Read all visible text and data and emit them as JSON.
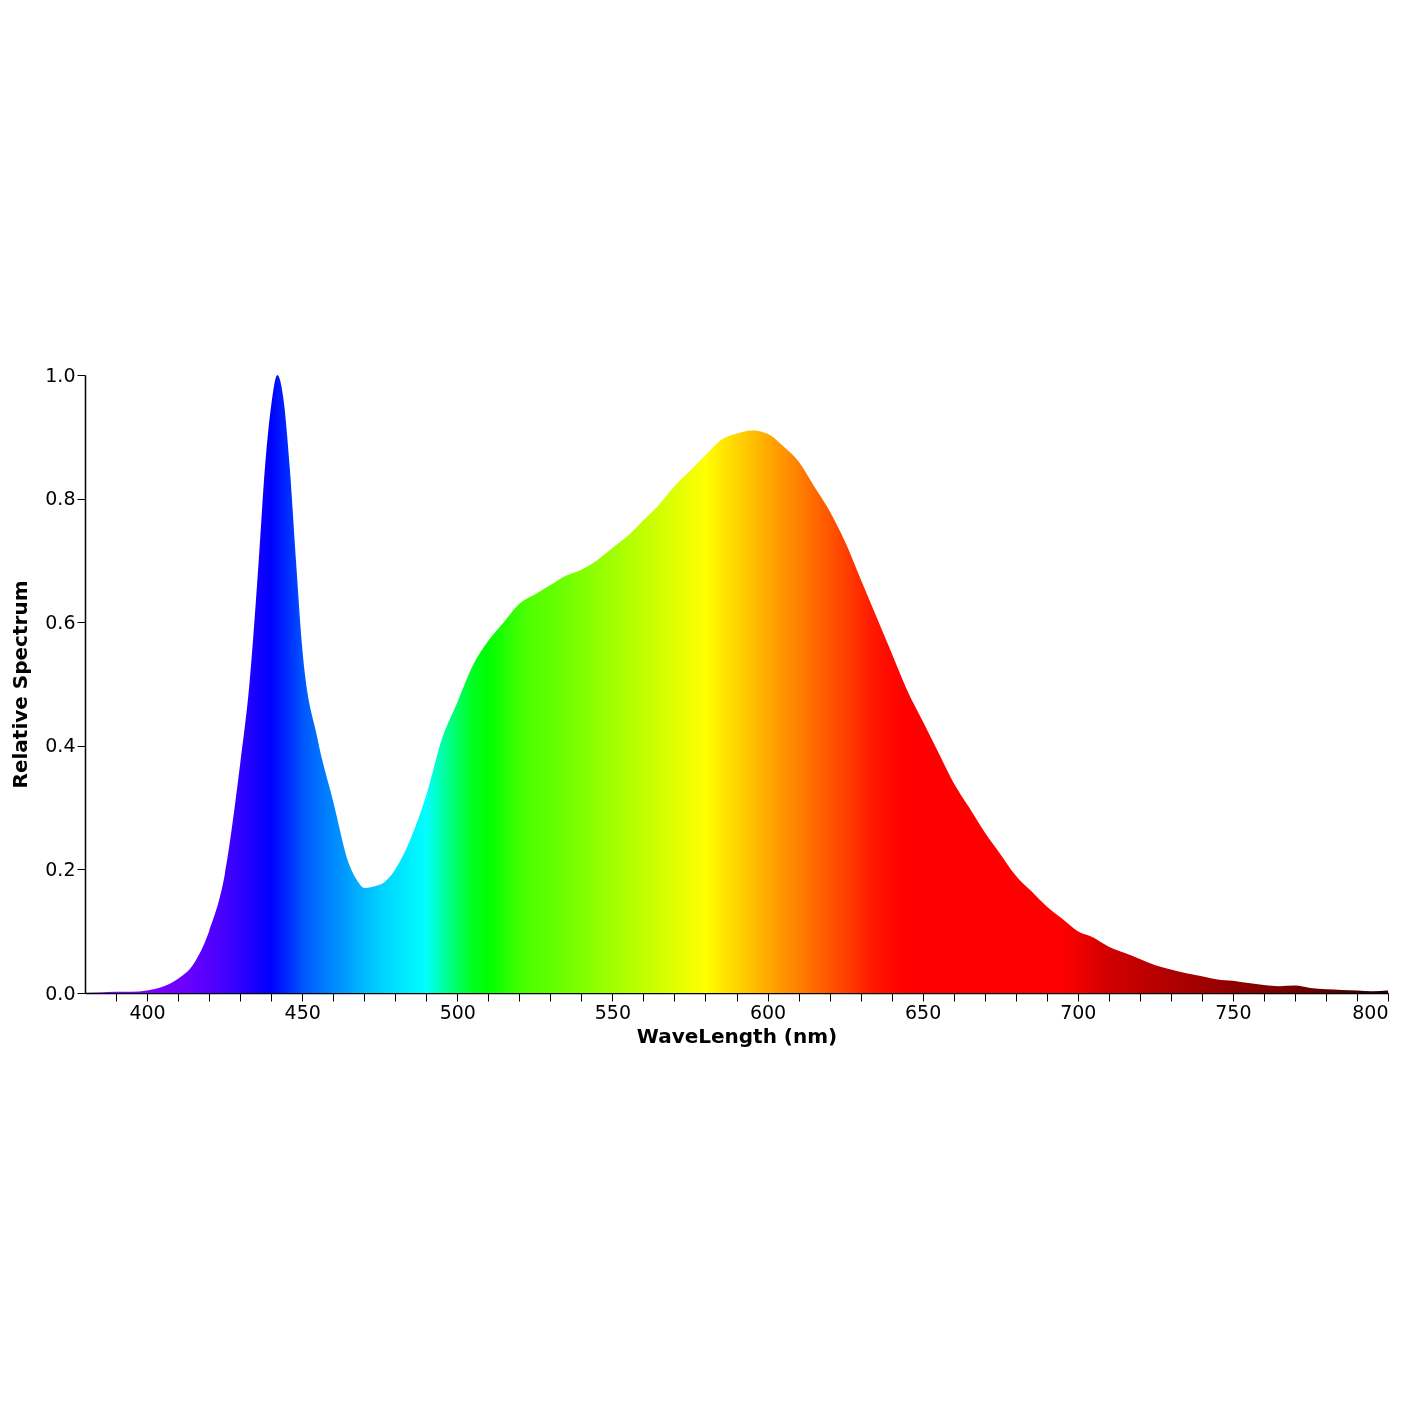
{
  "chart_data": {
    "type": "area",
    "xlabel": "WaveLength (nm)",
    "ylabel": "Relative Spectrum",
    "x": [
      380,
      385,
      390,
      395,
      400,
      405,
      410,
      415,
      420,
      425,
      430,
      433,
      436,
      438,
      440,
      442,
      444,
      446,
      448,
      450,
      455,
      460,
      465,
      468,
      470,
      475,
      480,
      485,
      490,
      495,
      500,
      505,
      510,
      515,
      520,
      525,
      530,
      535,
      540,
      545,
      550,
      555,
      560,
      565,
      570,
      575,
      580,
      585,
      590,
      595,
      600,
      605,
      610,
      615,
      620,
      625,
      630,
      635,
      640,
      645,
      650,
      655,
      660,
      665,
      670,
      675,
      680,
      685,
      690,
      695,
      700,
      705,
      710,
      715,
      720,
      725,
      730,
      735,
      740,
      745,
      750,
      755,
      760,
      765,
      770,
      775,
      780,
      785,
      790,
      795,
      800
    ],
    "series": [
      {
        "values": [
          0,
          0.001,
          0.002,
          0.002,
          0.004,
          0.01,
          0.023,
          0.047,
          0.1,
          0.19,
          0.37,
          0.5,
          0.7,
          0.85,
          0.95,
          1.0,
          0.96,
          0.85,
          0.7,
          0.56,
          0.41,
          0.31,
          0.21,
          0.18,
          0.17,
          0.175,
          0.2,
          0.25,
          0.32,
          0.41,
          0.47,
          0.53,
          0.57,
          0.6,
          0.63,
          0.645,
          0.66,
          0.675,
          0.685,
          0.7,
          0.72,
          0.74,
          0.765,
          0.79,
          0.82,
          0.845,
          0.87,
          0.895,
          0.905,
          0.91,
          0.905,
          0.885,
          0.86,
          0.82,
          0.78,
          0.73,
          0.67,
          0.61,
          0.55,
          0.49,
          0.44,
          0.39,
          0.34,
          0.3,
          0.26,
          0.225,
          0.19,
          0.165,
          0.14,
          0.12,
          0.1,
          0.09,
          0.075,
          0.065,
          0.055,
          0.045,
          0.038,
          0.032,
          0.027,
          0.022,
          0.02,
          0.016,
          0.013,
          0.011,
          0.012,
          0.008,
          0.006,
          0.005,
          0.004,
          0.003,
          0.004
        ],
        "colors": [
          "#8000ff",
          "#8000ff",
          "#8000ff",
          "#7f00ff",
          "#7a00ff",
          "#7500ff",
          "#6e00ff",
          "#6400ff",
          "#5500ff",
          "#4400ff",
          "#3000ff",
          "#2000ff",
          "#1000ff",
          "#0800ff",
          "#0000ff",
          "#0010ff",
          "#0020ff",
          "#0030ff",
          "#0040ff",
          "#0055ff",
          "#0070ff",
          "#0088ff",
          "#00a0ff",
          "#00b0ff",
          "#00b8ff",
          "#00d0ff",
          "#00e0ff",
          "#00f0ff",
          "#00ffff",
          "#00ffaa",
          "#00ff60",
          "#00ff20",
          "#00ff00",
          "#20ff00",
          "#40ff00",
          "#55ff00",
          "#60ff00",
          "#70ff00",
          "#80ff00",
          "#90ff00",
          "#a0ff00",
          "#b0ff00",
          "#c0ff00",
          "#d0ff00",
          "#e0ff00",
          "#f0ff00",
          "#ffff00",
          "#ffea00",
          "#ffd500",
          "#ffc000",
          "#ffaa00",
          "#ff9500",
          "#ff8000",
          "#ff6a00",
          "#ff5500",
          "#ff4000",
          "#ff2a00",
          "#ff1500",
          "#ff0800",
          "#ff0000",
          "#ff0000",
          "#ff0000",
          "#ff0000",
          "#ff0000",
          "#ff0000",
          "#ff0000",
          "#ff0000",
          "#ff0000",
          "#ff0000",
          "#ff0000",
          "#f00000",
          "#e00000",
          "#d00000",
          "#c80000",
          "#c00000",
          "#b80000",
          "#b00000",
          "#a80000",
          "#a00000",
          "#980000",
          "#900000",
          "#880000",
          "#800000",
          "#780000",
          "#700000",
          "#680000",
          "#600000",
          "#500000",
          "#400000",
          "#300000",
          "#200000"
        ]
      }
    ],
    "xlim": [
      380,
      800
    ],
    "xticks": [
      {
        "value": 390,
        "label": null
      },
      400,
      {
        "value": 410,
        "label": null
      },
      {
        "value": 420,
        "label": null
      },
      {
        "value": 430,
        "label": null
      },
      {
        "value": 440,
        "label": null
      },
      450,
      {
        "value": 460,
        "label": null
      },
      {
        "value": 470,
        "label": null
      },
      {
        "value": 480,
        "label": null
      },
      {
        "value": 490,
        "label": null
      },
      500,
      {
        "value": 510,
        "label": null
      },
      {
        "value": 520,
        "label": null
      },
      {
        "value": 530,
        "label": null
      },
      {
        "value": 540,
        "label": null
      },
      550,
      {
        "value": 560,
        "label": null
      },
      {
        "value": 570,
        "label": null
      },
      {
        "value": 580,
        "label": null
      },
      {
        "value": 590,
        "label": null
      },
      600,
      {
        "value": 610,
        "label": null
      },
      {
        "value": 620,
        "label": null
      },
      {
        "value": 630,
        "label": null
      },
      {
        "value": 640,
        "label": null
      },
      650,
      {
        "value": 660,
        "label": null
      },
      {
        "value": 670,
        "label": null
      },
      {
        "value": 680,
        "label": null
      },
      {
        "value": 690,
        "label": null
      },
      700,
      {
        "value": 710,
        "label": null
      },
      {
        "value": 720,
        "label": null
      },
      {
        "value": 730,
        "label": null
      },
      {
        "value": 740,
        "label": null
      },
      750,
      {
        "value": 760,
        "label": null
      },
      {
        "value": 770,
        "label": null
      },
      {
        "value": 780,
        "label": null
      },
      {
        "value": 790,
        "label": null
      },
      800
    ],
    "ylim": [
      0,
      1
    ],
    "yticks": [
      {
        "value": 0,
        "label": "0.0"
      },
      {
        "value": 0.2,
        "label": "0.2"
      },
      {
        "value": 0.4,
        "label": "0.4"
      },
      {
        "value": 0.6,
        "label": "0.6"
      },
      {
        "value": 0.8,
        "label": "0.8"
      },
      {
        "value": 1,
        "label": "1.0"
      }
    ],
    "grid": false
  }
}
